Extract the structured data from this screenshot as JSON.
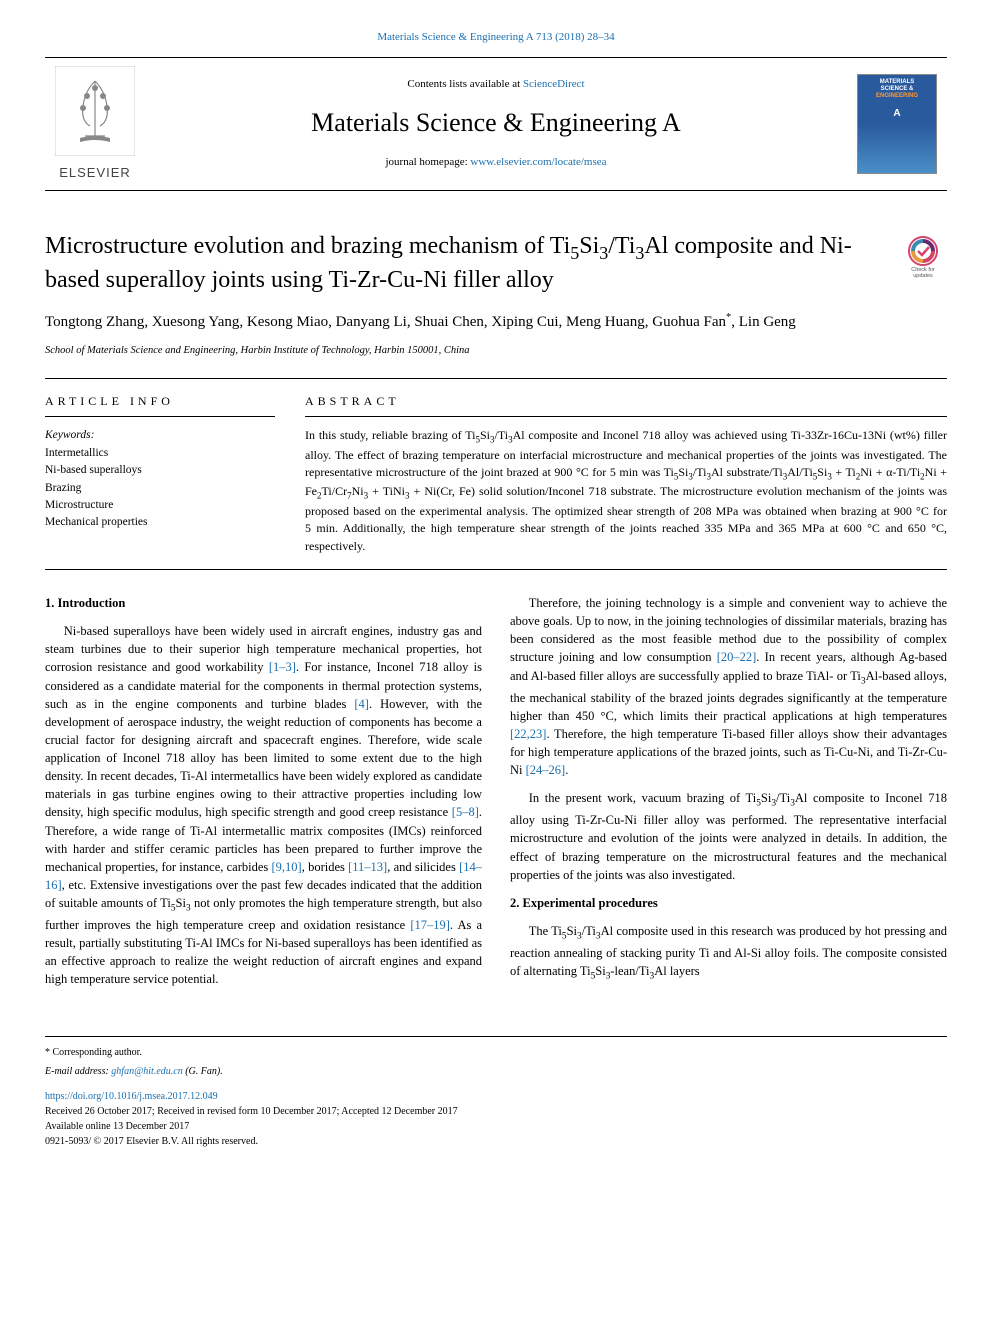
{
  "header": {
    "top_journal_ref": "Materials Science & Engineering A 713 (2018) 28–34",
    "contents_prefix": "Contents lists available at ",
    "contents_link": "ScienceDirect",
    "journal_name": "Materials Science & Engineering A",
    "homepage_prefix": "journal homepage: ",
    "homepage_link": "www.elsevier.com/locate/msea",
    "publisher_label": "ELSEVIER",
    "cover_text_line1": "MATERIALS",
    "cover_text_line2": "SCIENCE &",
    "cover_text_line3": "ENGINEERING",
    "cover_text_line4": "A"
  },
  "check_updates": {
    "line1": "Check for",
    "line2": "updates"
  },
  "article": {
    "title_html": "Microstructure evolution and brazing mechanism of Ti<sub>5</sub>Si<sub>3</sub>/Ti<sub>3</sub>Al composite and Ni-based superalloy joints using Ti-Zr-Cu-Ni filler alloy",
    "authors": "Tongtong Zhang, Xuesong Yang, Kesong Miao, Danyang Li, Shuai Chen, Xiping Cui, Meng Huang, Guohua Fan",
    "corr_mark": "*",
    "author_last": ", Lin Geng",
    "affiliation": "School of Materials Science and Engineering, Harbin Institute of Technology, Harbin 150001, China"
  },
  "info": {
    "heading": "ARTICLE INFO",
    "keywords_label": "Keywords:",
    "keywords": [
      "Intermetallics",
      "Ni-based superalloys",
      "Brazing",
      "Microstructure",
      "Mechanical properties"
    ]
  },
  "abstract": {
    "heading": "ABSTRACT",
    "text_html": "In this study, reliable brazing of Ti<sub>5</sub>Si<sub>3</sub>/Ti<sub>3</sub>Al composite and Inconel 718 alloy was achieved using Ti-33Zr-16Cu-13Ni (wt%) filler alloy. The effect of brazing temperature on interfacial microstructure and mechanical properties of the joints was investigated. The representative microstructure of the joint brazed at 900&nbsp;°C for 5&nbsp;min was Ti<sub>5</sub>Si<sub>3</sub>/Ti<sub>3</sub>Al substrate/Ti<sub>3</sub>Al/Ti<sub>5</sub>Si<sub>3</sub> + Ti<sub>2</sub>Ni + α-Ti/Ti<sub>2</sub>Ni + Fe<sub>2</sub>Ti/Cr<sub>7</sub>Ni<sub>3</sub> + TiNi<sub>3</sub> + Ni(Cr, Fe) solid solution/Inconel 718 substrate. The microstructure evolution mechanism of the joints was proposed based on the experimental analysis. The optimized shear strength of 208&nbsp;MPa was obtained when brazing at 900&nbsp;°C for 5&nbsp;min. Additionally, the high temperature shear strength of the joints reached 335&nbsp;MPa and 365&nbsp;MPa at 600&nbsp;°C and 650&nbsp;°C, respectively."
  },
  "body": {
    "section1_heading": "1. Introduction",
    "p1_html": "Ni-based superalloys have been widely used in aircraft engines, industry gas and steam turbines due to their superior high temperature mechanical properties, hot corrosion resistance and good workability <span class=\"ref\">[1–3]</span>. For instance, Inconel 718 alloy is considered as a candidate material for the components in thermal protection systems, such as in the engine components and turbine blades <span class=\"ref\">[4]</span>. However, with the development of aerospace industry, the weight reduction of components has become a crucial factor for designing aircraft and spacecraft engines. Therefore, wide scale application of Inconel 718 alloy has been limited to some extent due to the high density. In recent decades, Ti-Al intermetallics have been widely explored as candidate materials in gas turbine engines owing to their attractive properties including low density, high specific modulus, high specific strength and good creep resistance <span class=\"ref\">[5–8]</span>. Therefore, a wide range of Ti-Al intermetallic matrix composites (IMCs) reinforced with harder and stiffer ceramic particles has been prepared to further improve the mechanical properties, for instance, carbides <span class=\"ref\">[9,10]</span>, borides <span class=\"ref\">[11–13]</span>, and silicides <span class=\"ref\">[14–16]</span>, etc. Extensive investigations over the past few decades indicated that the addition of suitable amounts of Ti<sub>5</sub>Si<sub>3</sub> not only promotes the high temperature strength, but also further improves the high temperature creep and oxidation resistance <span class=\"ref\">[17–19]</span>. As a result, partially substituting Ti-Al IMCs for Ni-based superalloys has been identified as an effective approach to realize the weight reduction of aircraft engines and expand high temperature service potential.",
    "p2_html": "Therefore, the joining technology is a simple and convenient way to achieve the above goals. Up to now, in the joining technologies of dissimilar materials, brazing has been considered as the most feasible method due to the possibility of complex structure joining and low consumption <span class=\"ref\">[20–22]</span>. In recent years, although Ag-based and Al-based filler alloys are successfully applied to braze TiAl- or Ti<sub>3</sub>Al-based alloys, the mechanical stability of the brazed joints degrades significantly at the temperature higher than 450&nbsp;°C, which limits their practical applications at high temperatures <span class=\"ref\">[22,23]</span>. Therefore, the high temperature Ti-based filler alloys show their advantages for high temperature applications of the brazed joints, such as Ti-Cu-Ni, and Ti-Zr-Cu-Ni <span class=\"ref\">[24–26]</span>.",
    "p3_html": "In the present work, vacuum brazing of Ti<sub>5</sub>Si<sub>3</sub>/Ti<sub>3</sub>Al composite to Inconel 718 alloy using Ti-Zr-Cu-Ni filler alloy was performed. The representative interfacial microstructure and evolution of the joints were analyzed in details. In addition, the effect of brazing temperature on the microstructural features and the mechanical properties of the joints was also investigated.",
    "section2_heading": "2. Experimental procedures",
    "p4_html": "The Ti<sub>5</sub>Si<sub>3</sub>/Ti<sub>3</sub>Al composite used in this research was produced by hot pressing and reaction annealing of stacking purity Ti and Al-Si alloy foils. The composite consisted of alternating Ti<sub>5</sub>Si<sub>3</sub>-lean/Ti<sub>3</sub>Al layers"
  },
  "footer": {
    "corr_label": "* Corresponding author.",
    "email_label": "E-mail address: ",
    "email": "ghfan@hit.edu.cn",
    "email_suffix": " (G. Fan).",
    "doi": "https://doi.org/10.1016/j.msea.2017.12.049",
    "received": "Received 26 October 2017; Received in revised form 10 December 2017; Accepted 12 December 2017",
    "available": "Available online 13 December 2017",
    "copyright": "0921-5093/ © 2017 Elsevier B.V. All rights reserved."
  },
  "colors": {
    "link": "#1a6fb0",
    "text": "#000000",
    "elsevier_orange": "#ff6600",
    "cover_blue": "#2a5a9e"
  }
}
